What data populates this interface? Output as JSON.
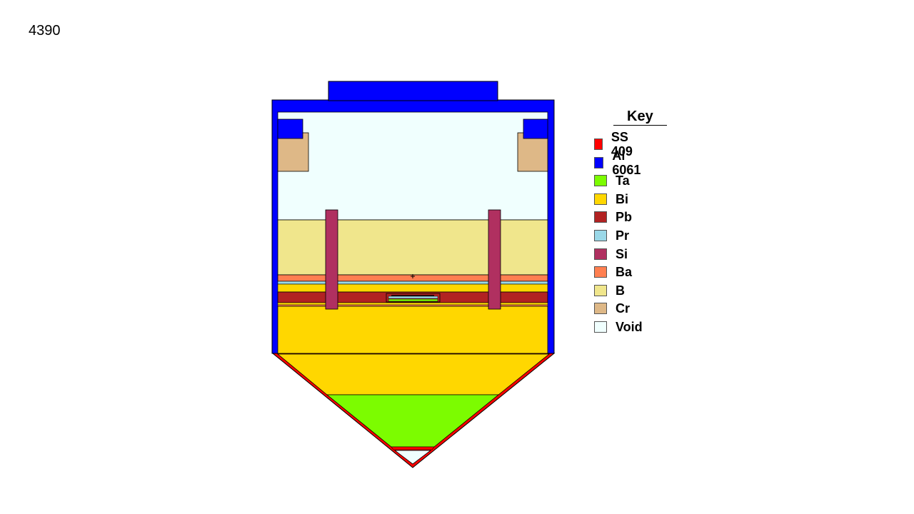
{
  "slide_number": "4390",
  "legend": {
    "title": "Key",
    "items": [
      {
        "label": "SS 409",
        "color": "#ff0000"
      },
      {
        "label": "Al 6061",
        "color": "#0000ff"
      },
      {
        "label": "Ta",
        "color": "#7cfc00"
      },
      {
        "label": "Bi",
        "color": "#ffd700"
      },
      {
        "label": "Pb",
        "color": "#b22222"
      },
      {
        "label": "Pr",
        "color": "#9ad8e8"
      },
      {
        "label": "Si",
        "color": "#b03060"
      },
      {
        "label": "Ba",
        "color": "#ff7f50"
      },
      {
        "label": "B",
        "color": "#f0e68c"
      },
      {
        "label": "Cr",
        "color": "#deb887"
      },
      {
        "label": "Void",
        "color": "#f0fffe"
      }
    ]
  }
}
